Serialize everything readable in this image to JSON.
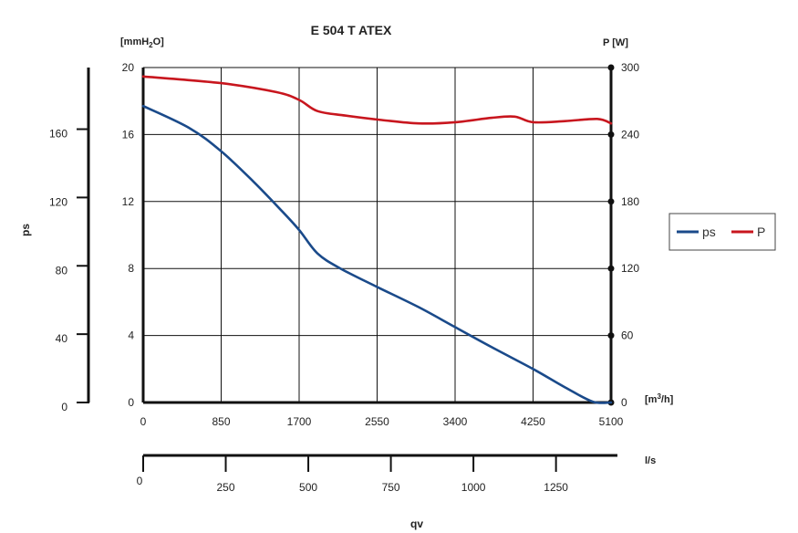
{
  "chart_data": {
    "type": "line",
    "title": "E 504 T ATEX",
    "left_unit_prefix": "[mmH",
    "left_unit_sub": "2",
    "left_unit_suffix": "O]",
    "right_unit": "P [W]",
    "flow_unit_m3h_prefix": "[m",
    "flow_unit_m3h_sup": "3",
    "flow_unit_m3h_suffix": "/h]",
    "flow_unit_ls": "l/s",
    "ps_axis_label": "ps",
    "qv_axis_label": "qv",
    "x_ticks": [
      "0",
      "850",
      "1700",
      "2550",
      "3400",
      "4250",
      "5100"
    ],
    "y_left_ticks": [
      "0",
      "4",
      "8",
      "12",
      "16",
      "20"
    ],
    "y_right_ticks": [
      "0",
      "60",
      "120",
      "180",
      "240",
      "300"
    ],
    "pa_ticks": [
      "0",
      "40",
      "80",
      "120",
      "160"
    ],
    "ls_ticks": [
      "0",
      "250",
      "500",
      "750",
      "1000",
      "1250"
    ],
    "xlim": [
      0,
      5100
    ],
    "ylim_left": [
      0,
      20
    ],
    "ylim_right": [
      0,
      300
    ],
    "pa_ticks_mmH2O": [
      0,
      4.08,
      8.16,
      12.24,
      16.32
    ],
    "ls_ticks_m3h": [
      0,
      900,
      1800,
      2700,
      3600,
      4500
    ],
    "grid": true,
    "legend_position": "right",
    "series": [
      {
        "name": "ps",
        "color": "#1a4a8a",
        "axis": "left",
        "points": [
          [
            0,
            17.7
          ],
          [
            500,
            16.4
          ],
          [
            850,
            15.0
          ],
          [
            1200,
            13.2
          ],
          [
            1500,
            11.5
          ],
          [
            1700,
            10.3
          ],
          [
            1900,
            8.9
          ],
          [
            2150,
            8.0
          ],
          [
            2550,
            6.9
          ],
          [
            3000,
            5.7
          ],
          [
            3400,
            4.5
          ],
          [
            3800,
            3.3
          ],
          [
            4250,
            2.0
          ],
          [
            4600,
            0.9
          ],
          [
            4900,
            0.05
          ],
          [
            5100,
            0.0
          ]
        ]
      },
      {
        "name": "P",
        "color": "#c8161e",
        "axis": "right",
        "points": [
          [
            0,
            292
          ],
          [
            850,
            286
          ],
          [
            1450,
            278
          ],
          [
            1700,
            271
          ],
          [
            1900,
            261
          ],
          [
            2200,
            257
          ],
          [
            2600,
            253
          ],
          [
            3000,
            250
          ],
          [
            3400,
            251
          ],
          [
            3800,
            255
          ],
          [
            4050,
            256
          ],
          [
            4250,
            251
          ],
          [
            4600,
            252
          ],
          [
            4950,
            254
          ],
          [
            5100,
            250
          ]
        ]
      }
    ]
  }
}
